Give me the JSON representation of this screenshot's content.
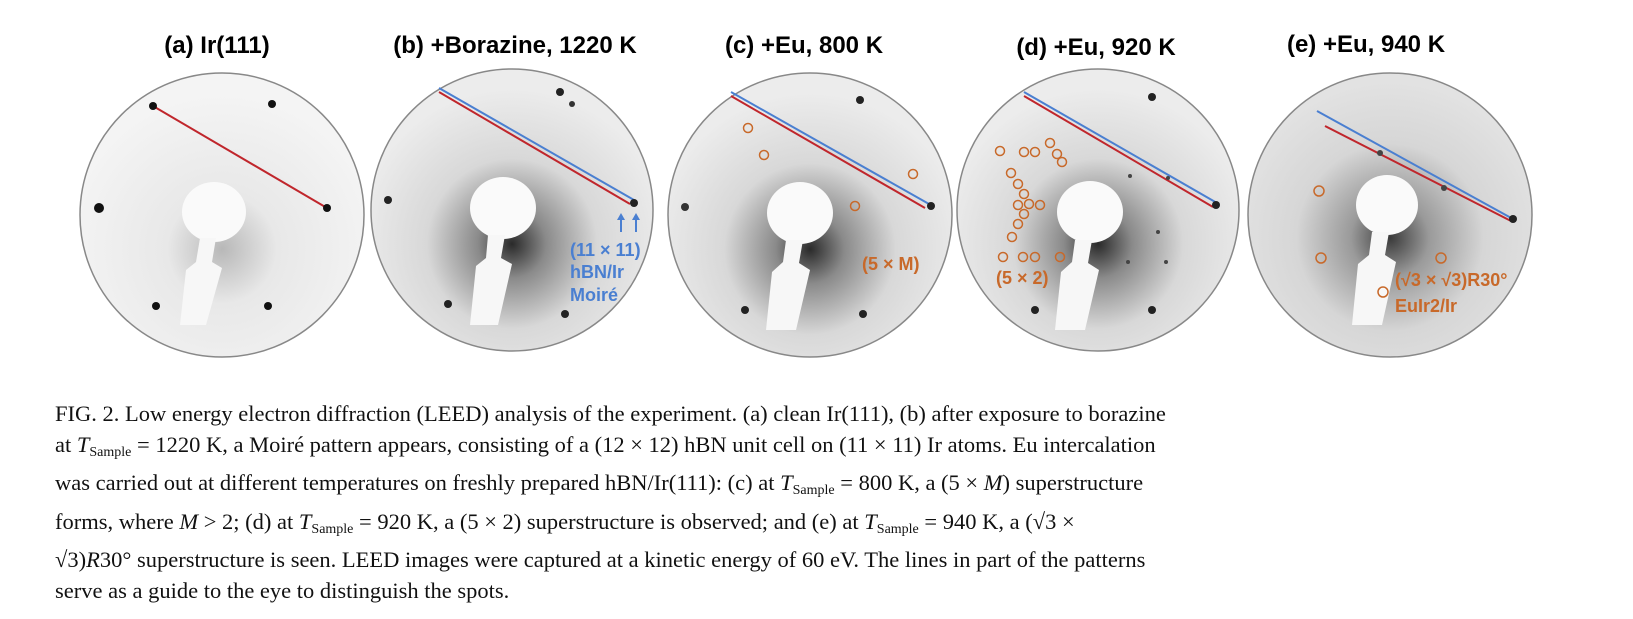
{
  "figure": {
    "panels": [
      {
        "title": "(a) Ir(111)",
        "annotations": []
      },
      {
        "title": "(b) +Borazine, 1220 K",
        "annotations": [
          "(11 × 11)",
          "hBN/Ir",
          "Moiré"
        ]
      },
      {
        "title": "(c) +Eu, 800 K",
        "annotations": [
          "(5 × M)"
        ]
      },
      {
        "title": "(d) +Eu, 920 K",
        "annotations": [
          "(5 × 2)"
        ]
      },
      {
        "title": "(e) +Eu, 940 K",
        "annotations": [
          "(√3 × √3)R30°",
          "EuIr2/Ir"
        ]
      }
    ],
    "colors": {
      "red_line": "#c0262c",
      "blue_line": "#4a7fd1",
      "orange_marker": "#c8692a"
    }
  },
  "caption": {
    "line1": "FIG. 2. Low energy electron diffraction (LEED) analysis of the experiment. (a) clean Ir(111), (b) after exposure to borazine",
    "line2_a": "at ",
    "t_var": "T",
    "t_sub": "Sample",
    "line2_b": " = 1220 K, a Moiré pattern appears, consisting of a (12 × 12) hBN unit cell on (11 × 11) Ir atoms. Eu intercalation",
    "line3_a": "was carried out at different temperatures on freshly prepared hBN/Ir(111): (c) at ",
    "line3_b": " = 800 K, a (5 × ",
    "m_var": "M",
    "line3_c": ") superstructure",
    "line4_a": "forms, where ",
    "line4_b": " > 2; (d) at ",
    "line4_c": " = 920 K, a (5 × 2) superstructure is observed; and (e) at ",
    "line4_d": " = 940 K, a (√",
    "line4_e": "3 ×",
    "line5_a": "√",
    "line5_b": "3)",
    "r_var": "R",
    "line5_c": "30° superstructure is seen. LEED images were captured at a kinetic energy of 60 eV. The lines in part of the patterns",
    "line6": "serve as a guide to the eye to distinguish the spots."
  }
}
